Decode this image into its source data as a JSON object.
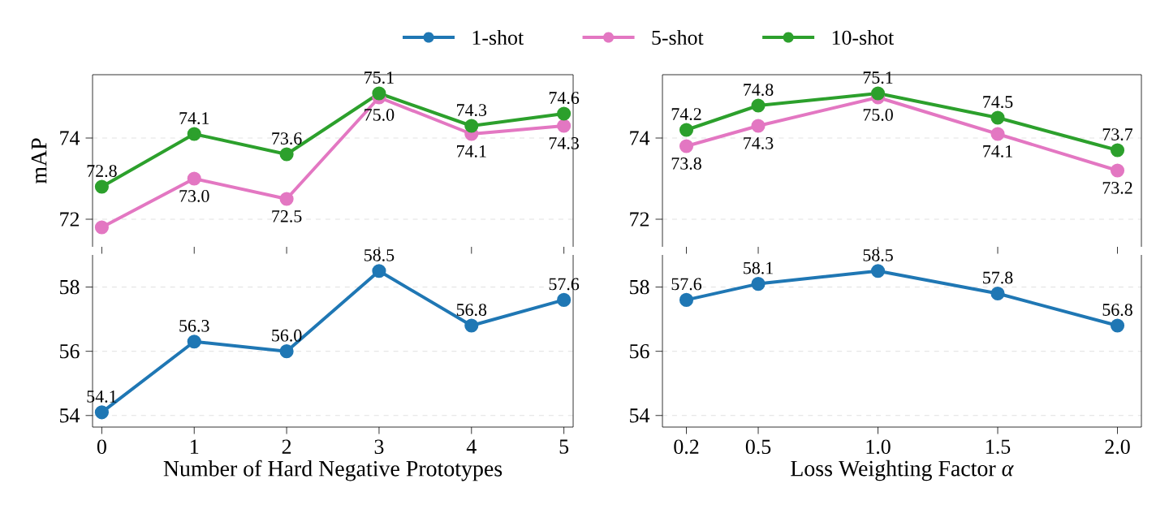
{
  "chart_data": [
    {
      "type": "line",
      "x": [
        0,
        1,
        2,
        3,
        4,
        5
      ],
      "xlim": [
        -0.1,
        5.1
      ],
      "xticks": [
        0,
        1,
        2,
        3,
        4,
        5
      ],
      "ylim": [
        71.32,
        75.56
      ],
      "yticks": [
        72,
        74
      ],
      "ylabel": "mAP",
      "tick_labels": "y",
      "grid": "y",
      "marker": "circle",
      "line_style": "solid",
      "legend": "top",
      "series": [
        {
          "name": "5-shot",
          "color": "#e377c2",
          "values": [
            71.8,
            73.0,
            72.5,
            75.0,
            74.1,
            74.3
          ],
          "value_labels": [
            null,
            "73.0",
            "72.5",
            "75.0",
            "74.1",
            "74.3"
          ]
        },
        {
          "name": "10-shot",
          "color": "#2ca02c",
          "values": [
            72.8,
            74.1,
            73.6,
            75.1,
            74.3,
            74.6
          ],
          "value_labels": [
            "72.8",
            "74.1",
            "73.6",
            "75.1",
            "74.3",
            "74.6"
          ]
        }
      ]
    },
    {
      "type": "line",
      "x": [
        0,
        1,
        2,
        3,
        4,
        5
      ],
      "xlim": [
        -0.1,
        5.1
      ],
      "xticks": [
        0,
        1,
        2,
        3,
        4,
        5
      ],
      "ylim": [
        53.64,
        59.0
      ],
      "yticks": [
        54,
        56,
        58
      ],
      "xlabel": "Number of Hard Negative Prototypes",
      "grid": "y",
      "marker": "circle",
      "line_style": "solid",
      "legend": "top",
      "series": [
        {
          "name": "1-shot",
          "color": "#1f77b4",
          "values": [
            54.1,
            56.3,
            56.0,
            58.5,
            56.8,
            57.6
          ],
          "value_labels": [
            "54.1",
            "56.3",
            "56.0",
            "58.5",
            "56.8",
            "57.6"
          ]
        }
      ]
    },
    {
      "type": "line",
      "x": [
        0.2,
        0.5,
        1.0,
        1.5,
        2.0
      ],
      "xlim": [
        0.1,
        2.1
      ],
      "xticks": [
        0.2,
        0.5,
        1.0,
        1.5,
        2.0
      ],
      "ylim": [
        71.32,
        75.56
      ],
      "yticks": [
        72,
        74
      ],
      "tick_labels": "y",
      "grid": "y",
      "marker": "circle",
      "line_style": "solid",
      "series": [
        {
          "color": "#e377c2",
          "values": [
            73.8,
            74.3,
            75.0,
            74.1,
            73.2
          ],
          "value_labels": [
            "73.8",
            "74.3",
            "75.0",
            "74.1",
            "73.2"
          ]
        },
        {
          "color": "#2ca02c",
          "values": [
            74.2,
            74.8,
            75.1,
            74.5,
            73.7
          ],
          "value_labels": [
            "74.2",
            "74.8",
            "75.1",
            "74.5",
            "73.7"
          ]
        }
      ]
    },
    {
      "type": "line",
      "x": [
        0.2,
        0.5,
        1.0,
        1.5,
        2.0
      ],
      "xlim": [
        0.1,
        2.1
      ],
      "xticks": [
        {
          "value": 0.2,
          "label": "0.2"
        },
        {
          "value": 0.5,
          "label": "0.5"
        },
        {
          "value": 1.0,
          "label": "1.0"
        },
        {
          "value": 1.5,
          "label": "1.5"
        },
        {
          "value": 2.0,
          "label": "2.0"
        }
      ],
      "ylim": [
        53.64,
        59.0
      ],
      "yticks": [
        54,
        56,
        58
      ],
      "xlabel": "Loss Weighting Factor *α*",
      "grid": "y",
      "marker": "circle",
      "line_style": "solid",
      "series": [
        {
          "color": "#1f77b4",
          "values": [
            57.6,
            58.1,
            58.5,
            57.8,
            56.8
          ],
          "value_labels": [
            "57.6",
            "58.1",
            "58.5",
            "57.8",
            "56.8"
          ]
        }
      ]
    }
  ]
}
